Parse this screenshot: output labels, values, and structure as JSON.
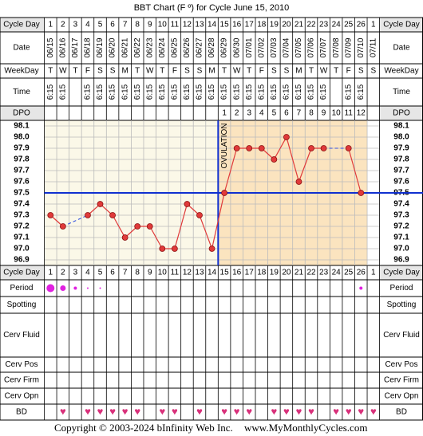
{
  "title": "BBT Chart (F º) for Cycle June 15, 2010",
  "row_labels": {
    "cycle_day": "Cycle Day",
    "date": "Date",
    "weekday": "WeekDay",
    "time": "Time",
    "dpo": "DPO",
    "period": "Period",
    "spotting": "Spotting",
    "cerv_fluid": "Cerv Fluid",
    "cerv_pos": "Cerv Pos",
    "cerv_firm": "Cerv Firm",
    "cerv_opn": "Cerv Opn",
    "bd": "BD"
  },
  "dates": [
    "06/15",
    "06/16",
    "06/17",
    "06/18",
    "06/19",
    "06/20",
    "06/21",
    "06/22",
    "06/23",
    "06/24",
    "06/25",
    "06/26",
    "06/27",
    "06/28",
    "06/29",
    "06/30",
    "07/01",
    "07/02",
    "07/03",
    "07/04",
    "07/05",
    "07/06",
    "07/07",
    "07/08",
    "07/09",
    "07/10",
    "07/11"
  ],
  "weekdays": [
    "T",
    "W",
    "T",
    "F",
    "S",
    "S",
    "M",
    "T",
    "W",
    "T",
    "F",
    "S",
    "S",
    "M",
    "T",
    "W",
    "T",
    "F",
    "S",
    "S",
    "M",
    "T",
    "W",
    "T",
    "F",
    "S",
    "S"
  ],
  "times": [
    "6:15",
    "6:15",
    null,
    "6:15",
    "6:15",
    "6:15",
    "6:15",
    "6:15",
    "6:15",
    "6:15",
    "6:15",
    "6:15",
    "6:15",
    "6:15",
    "6:15",
    "6:15",
    "6:15",
    "6:15",
    "6:15",
    "6:15",
    "6:15",
    "6:15",
    "6:15",
    null,
    "6:15",
    "6:15",
    null
  ],
  "dpo": [
    null,
    null,
    null,
    null,
    null,
    null,
    null,
    null,
    null,
    null,
    null,
    null,
    null,
    null,
    1,
    2,
    3,
    4,
    5,
    6,
    7,
    8,
    9,
    10,
    11,
    12,
    null
  ],
  "period": [
    5,
    3.5,
    2,
    1,
    1,
    null,
    null,
    null,
    null,
    null,
    null,
    null,
    null,
    null,
    null,
    null,
    null,
    null,
    null,
    null,
    null,
    null,
    null,
    null,
    null,
    2,
    null
  ],
  "bd_symbol": "♥",
  "bd": [
    false,
    true,
    false,
    true,
    true,
    true,
    true,
    true,
    false,
    true,
    true,
    false,
    true,
    false,
    true,
    true,
    true,
    false,
    true,
    true,
    true,
    true,
    false,
    true,
    true,
    true,
    true
  ],
  "chart_data": {
    "type": "line",
    "categories": [
      1,
      2,
      3,
      4,
      5,
      6,
      7,
      8,
      9,
      10,
      11,
      12,
      13,
      14,
      15,
      16,
      17,
      18,
      19,
      20,
      21,
      22,
      23,
      24,
      25,
      26,
      1
    ],
    "series": [
      {
        "color": "#e03a3a",
        "values": [
          97.3,
          97.2,
          null,
          97.3,
          97.4,
          97.3,
          97.1,
          97.2,
          97.2,
          97.0,
          97.0,
          97.4,
          97.3,
          97.0,
          97.5,
          97.9,
          97.9,
          97.9,
          97.8,
          98.0,
          97.6,
          97.9,
          97.9,
          null,
          97.9,
          97.5,
          null
        ]
      }
    ],
    "ylim": [
      96.85,
      98.15
    ],
    "yticks": [
      98.1,
      {
        "value": 98,
        "label": "98.0"
      },
      97.9,
      97.8,
      97.7,
      97.6,
      97.5,
      97.4,
      97.3,
      97.2,
      97.1,
      {
        "value": 97,
        "label": "97.0"
      },
      96.9
    ],
    "coverline": 97.5,
    "coverline_color": "#1030d0",
    "ovulation": {
      "label": "OVULATION",
      "day_index": 13
    },
    "grid": true
  },
  "footer": {
    "copyright": "Copyright © 2003-2024 bInfinity Web Inc.",
    "site": "www.MyMonthlyCycles.com"
  }
}
